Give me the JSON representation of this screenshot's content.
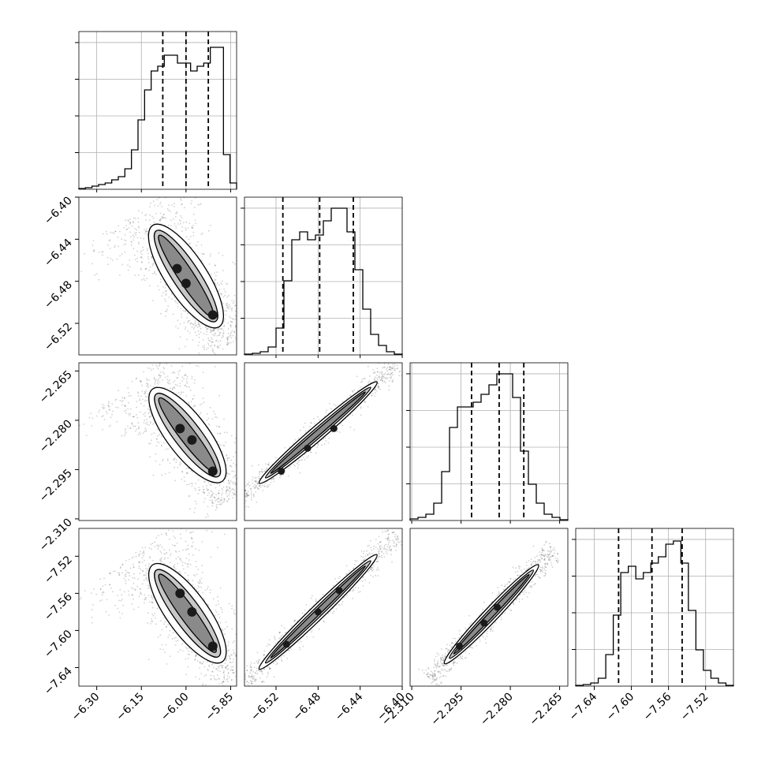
{
  "chart_data": {
    "type": "corner",
    "parameters": [
      {
        "range": [
          -6.36,
          -5.83
        ],
        "ticks": [
          -6.3,
          -6.15,
          -6.0,
          -5.85
        ],
        "tick_labels": [
          "−6.30",
          "−6.15",
          "−6.00",
          "−5.85"
        ],
        "quantiles": [
          -6.078,
          -6.0,
          -5.925
        ],
        "histogram": [
          0.005,
          0.01,
          0.02,
          0.03,
          0.04,
          0.06,
          0.08,
          0.13,
          0.25,
          0.44,
          0.63,
          0.75,
          0.78,
          0.85,
          0.85,
          0.8,
          0.8,
          0.75,
          0.78,
          0.8,
          0.9,
          0.9,
          0.22,
          0.04
        ]
      },
      {
        "range": [
          -6.55,
          -6.4
        ],
        "ticks": [
          -6.52,
          -6.48,
          -6.44,
          -6.4
        ],
        "tick_labels": [
          "−6.52",
          "−6.48",
          "−6.44",
          "−6.40"
        ],
        "quantiles": [
          -6.5135,
          -6.4785,
          -6.4465
        ],
        "histogram": [
          0.005,
          0.01,
          0.02,
          0.05,
          0.17,
          0.47,
          0.73,
          0.78,
          0.73,
          0.76,
          0.85,
          0.93,
          0.93,
          0.78,
          0.54,
          0.29,
          0.13,
          0.06,
          0.02,
          0.005
        ]
      },
      {
        "range": [
          -2.3105,
          -2.2625
        ],
        "ticks": [
          -2.31,
          -2.295,
          -2.28,
          -2.265
        ],
        "tick_labels": [
          "−2.310",
          "−2.295",
          "−2.280",
          "−2.265"
        ],
        "quantiles": [
          -2.2918,
          -2.2834,
          -2.2759
        ],
        "histogram": [
          0.01,
          0.02,
          0.04,
          0.11,
          0.31,
          0.59,
          0.72,
          0.72,
          0.75,
          0.8,
          0.86,
          0.93,
          0.93,
          0.78,
          0.44,
          0.23,
          0.11,
          0.04,
          0.02,
          0.005
        ]
      },
      {
        "range": [
          -7.66,
          -7.49
        ],
        "ticks": [
          -7.64,
          -7.6,
          -7.56,
          -7.52
        ],
        "tick_labels": [
          "−7.64",
          "−7.60",
          "−7.56",
          "−7.52"
        ],
        "quantiles": [
          -7.6138,
          -7.5778,
          -7.5453
        ],
        "histogram": [
          0.005,
          0.01,
          0.02,
          0.05,
          0.2,
          0.45,
          0.72,
          0.76,
          0.68,
          0.72,
          0.78,
          0.82,
          0.9,
          0.92,
          0.78,
          0.48,
          0.23,
          0.1,
          0.05,
          0.02,
          0.005
        ]
      }
    ],
    "pairs": [
      {
        "x": 0,
        "y": 1,
        "start": [
          -6.1,
          -6.432
        ],
        "end": [
          -5.9,
          -6.518
        ],
        "cores": [
          [
            -6.03,
            -6.468
          ],
          [
            -6.0,
            -6.482
          ],
          [
            -5.91,
            -6.512
          ]
        ]
      },
      {
        "x": 0,
        "y": 2,
        "start": [
          -6.1,
          -2.272
        ],
        "end": [
          -5.89,
          -2.297
        ],
        "cores": [
          [
            -6.02,
            -2.2825
          ],
          [
            -5.98,
            -2.286
          ],
          [
            -5.91,
            -2.2955
          ]
        ]
      },
      {
        "x": 0,
        "y": 3,
        "start": [
          -6.1,
          -7.535
        ],
        "end": [
          -5.89,
          -7.628
        ],
        "cores": [
          [
            -6.02,
            -7.56
          ],
          [
            -5.98,
            -7.58
          ],
          [
            -5.91,
            -7.617
          ]
        ]
      },
      {
        "x": 1,
        "y": 2,
        "start": [
          -6.53,
          -2.2975
        ],
        "end": [
          -6.43,
          -2.27
        ],
        "cores": [
          [
            -6.515,
            -2.2955
          ],
          [
            -6.49,
            -2.2885
          ],
          [
            -6.465,
            -2.2825
          ]
        ]
      },
      {
        "x": 1,
        "y": 3,
        "start": [
          -6.53,
          -7.635
        ],
        "end": [
          -6.43,
          -7.525
        ],
        "cores": [
          [
            -6.51,
            -7.615
          ],
          [
            -6.48,
            -7.58
          ],
          [
            -6.46,
            -7.557
          ]
        ]
      },
      {
        "x": 2,
        "y": 3,
        "start": [
          -2.2985,
          -7.63
        ],
        "end": [
          -2.273,
          -7.535
        ],
        "cores": [
          [
            -2.2955,
            -7.617
          ],
          [
            -2.288,
            -7.592
          ],
          [
            -2.284,
            -7.575
          ]
        ]
      }
    ]
  }
}
